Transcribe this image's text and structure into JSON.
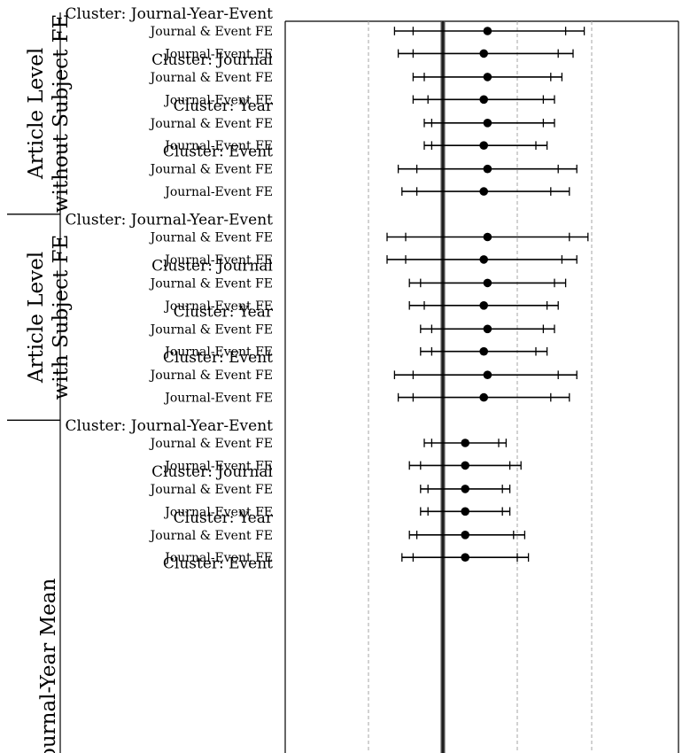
{
  "chart_data": {
    "type": "forest",
    "zero_line": 0,
    "gridlines": [
      -0.2,
      0.2,
      0.4
    ],
    "xlim": [
      -0.42,
      0.64
    ],
    "groups": [
      {
        "label": [
          "Article Level",
          "without Subject FE"
        ],
        "clusters": [
          {
            "label": "Cluster: Journal-Year-Event",
            "rows": [
              {
                "label": "Journal & Event FE",
                "est": 0.12,
                "ci90": [
                  -0.08,
                  0.33
                ],
                "ci95": [
                  -0.13,
                  0.38
                ]
              },
              {
                "label": "Journal-Event FE",
                "est": 0.11,
                "ci90": [
                  -0.08,
                  0.31
                ],
                "ci95": [
                  -0.12,
                  0.35
                ]
              }
            ]
          },
          {
            "label": "Cluster: Journal",
            "rows": [
              {
                "label": "Journal & Event FE",
                "est": 0.12,
                "ci90": [
                  -0.05,
                  0.29
                ],
                "ci95": [
                  -0.08,
                  0.32
                ]
              },
              {
                "label": "Journal-Event FE",
                "est": 0.11,
                "ci90": [
                  -0.04,
                  0.27
                ],
                "ci95": [
                  -0.08,
                  0.3
                ]
              }
            ]
          },
          {
            "label": "Cluster: Year",
            "rows": [
              {
                "label": "Journal & Event FE",
                "est": 0.12,
                "ci90": [
                  -0.03,
                  0.27
                ],
                "ci95": [
                  -0.05,
                  0.3
                ]
              },
              {
                "label": "Journal-Event FE",
                "est": 0.11,
                "ci90": [
                  -0.03,
                  0.25
                ],
                "ci95": [
                  -0.05,
                  0.28
                ]
              }
            ]
          },
          {
            "label": "Cluster: Event",
            "rows": [
              {
                "label": "Journal & Event FE",
                "est": 0.12,
                "ci90": [
                  -0.07,
                  0.31
                ],
                "ci95": [
                  -0.12,
                  0.36
                ]
              },
              {
                "label": "Journal-Event FE",
                "est": 0.11,
                "ci90": [
                  -0.07,
                  0.29
                ],
                "ci95": [
                  -0.11,
                  0.34
                ]
              }
            ]
          }
        ]
      },
      {
        "label": [
          "Article Level",
          "with Subject FE"
        ],
        "clusters": [
          {
            "label": "Cluster: Journal-Year-Event",
            "rows": [
              {
                "label": "Journal & Event FE",
                "est": 0.12,
                "ci90": [
                  -0.1,
                  0.34
                ],
                "ci95": [
                  -0.15,
                  0.39
                ]
              },
              {
                "label": "Journal-Event FE",
                "est": 0.11,
                "ci90": [
                  -0.1,
                  0.32
                ],
                "ci95": [
                  -0.15,
                  0.36
                ]
              }
            ]
          },
          {
            "label": "Cluster: Journal",
            "rows": [
              {
                "label": "Journal & Event FE",
                "est": 0.12,
                "ci90": [
                  -0.06,
                  0.3
                ],
                "ci95": [
                  -0.09,
                  0.33
                ]
              },
              {
                "label": "Journal-Event FE",
                "est": 0.11,
                "ci90": [
                  -0.05,
                  0.28
                ],
                "ci95": [
                  -0.09,
                  0.31
                ]
              }
            ]
          },
          {
            "label": "Cluster: Year",
            "rows": [
              {
                "label": "Journal & Event FE",
                "est": 0.12,
                "ci90": [
                  -0.03,
                  0.27
                ],
                "ci95": [
                  -0.06,
                  0.3
                ]
              },
              {
                "label": "Journal-Event FE",
                "est": 0.11,
                "ci90": [
                  -0.03,
                  0.25
                ],
                "ci95": [
                  -0.06,
                  0.28
                ]
              }
            ]
          },
          {
            "label": "Cluster: Event",
            "rows": [
              {
                "label": "Journal & Event FE",
                "est": 0.12,
                "ci90": [
                  -0.08,
                  0.31
                ],
                "ci95": [
                  -0.13,
                  0.36
                ]
              },
              {
                "label": "Journal-Event FE",
                "est": 0.11,
                "ci90": [
                  -0.08,
                  0.29
                ],
                "ci95": [
                  -0.12,
                  0.34
                ]
              }
            ]
          }
        ]
      },
      {
        "label": [
          "Journal-Year Mean"
        ],
        "clusters": [
          {
            "label": "Cluster: Journal-Year-Event",
            "rows": [
              {
                "label": "Journal & Event FE",
                "est": 0.06,
                "ci90": [
                  -0.03,
                  0.15
                ],
                "ci95": [
                  -0.05,
                  0.17
                ]
              },
              {
                "label": "Journal-Event FE",
                "est": 0.06,
                "ci90": [
                  -0.06,
                  0.18
                ],
                "ci95": [
                  -0.09,
                  0.21
                ]
              }
            ]
          },
          {
            "label": "Cluster: Journal",
            "rows": [
              {
                "label": "Journal & Event FE",
                "est": 0.06,
                "ci90": [
                  -0.04,
                  0.16
                ],
                "ci95": [
                  -0.06,
                  0.18
                ]
              },
              {
                "label": "Journal-Event FE",
                "est": 0.06,
                "ci90": [
                  -0.04,
                  0.16
                ],
                "ci95": [
                  -0.06,
                  0.18
                ]
              }
            ]
          },
          {
            "label": "Cluster: Year",
            "rows": [
              {
                "label": "Journal & Event FE",
                "est": 0.06,
                "ci90": [
                  -0.07,
                  0.19
                ],
                "ci95": [
                  -0.09,
                  0.22
                ]
              },
              {
                "label": "Journal-Event FE",
                "est": 0.06,
                "ci90": [
                  -0.08,
                  0.2
                ],
                "ci95": [
                  -0.11,
                  0.23
                ]
              }
            ]
          },
          {
            "label": "Cluster: Event",
            "rows": []
          }
        ]
      }
    ]
  }
}
